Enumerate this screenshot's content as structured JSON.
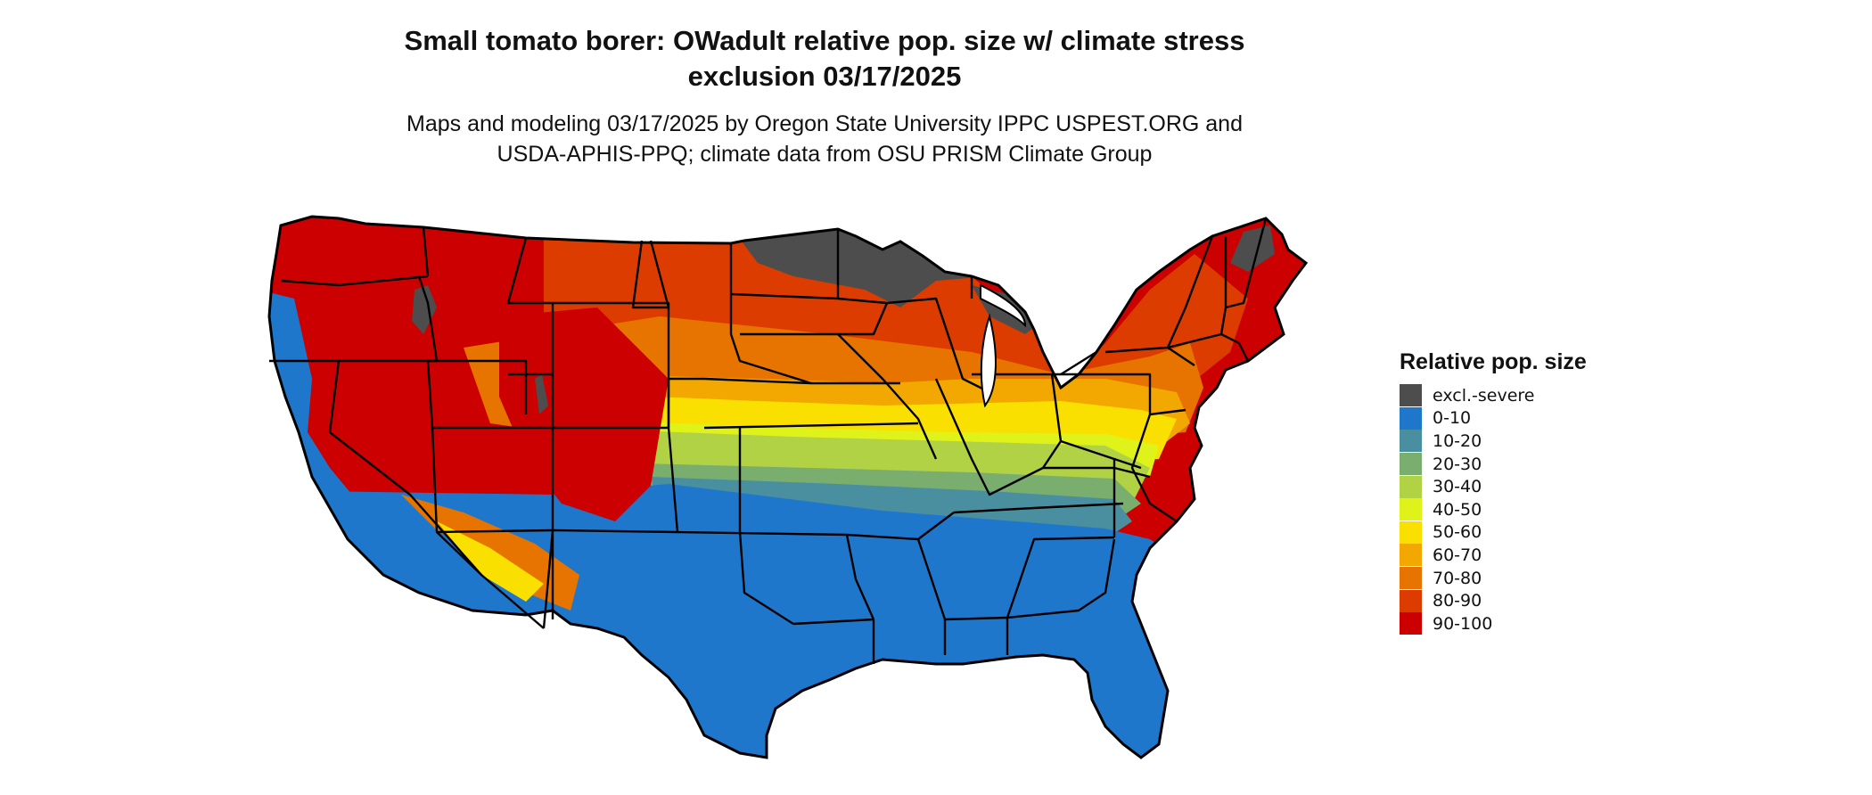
{
  "title_line1": "Small tomato borer: OWadult relative pop. size w/ climate stress",
  "title_line2": "exclusion 03/17/2025",
  "subtitle_line1": "Maps and modeling 03/17/2025 by Oregon State University IPPC USPEST.ORG and",
  "subtitle_line2": "USDA-APHIS-PPQ; climate data from OSU PRISM Climate Group",
  "legend": {
    "title": "Relative pop. size",
    "items": [
      {
        "label": "excl.-severe",
        "color": "#4d4d4d"
      },
      {
        "label": "0-10",
        "color": "#1f77cc"
      },
      {
        "label": "10-20",
        "color": "#4a8fa0"
      },
      {
        "label": "20-30",
        "color": "#7aae6e"
      },
      {
        "label": "30-40",
        "color": "#b2d245"
      },
      {
        "label": "40-50",
        "color": "#dff31a"
      },
      {
        "label": "50-60",
        "color": "#fae000"
      },
      {
        "label": "60-70",
        "color": "#f2a800"
      },
      {
        "label": "70-80",
        "color": "#e87400"
      },
      {
        "label": "80-90",
        "color": "#dd3c00"
      },
      {
        "label": "90-100",
        "color": "#cc0000"
      }
    ]
  }
}
